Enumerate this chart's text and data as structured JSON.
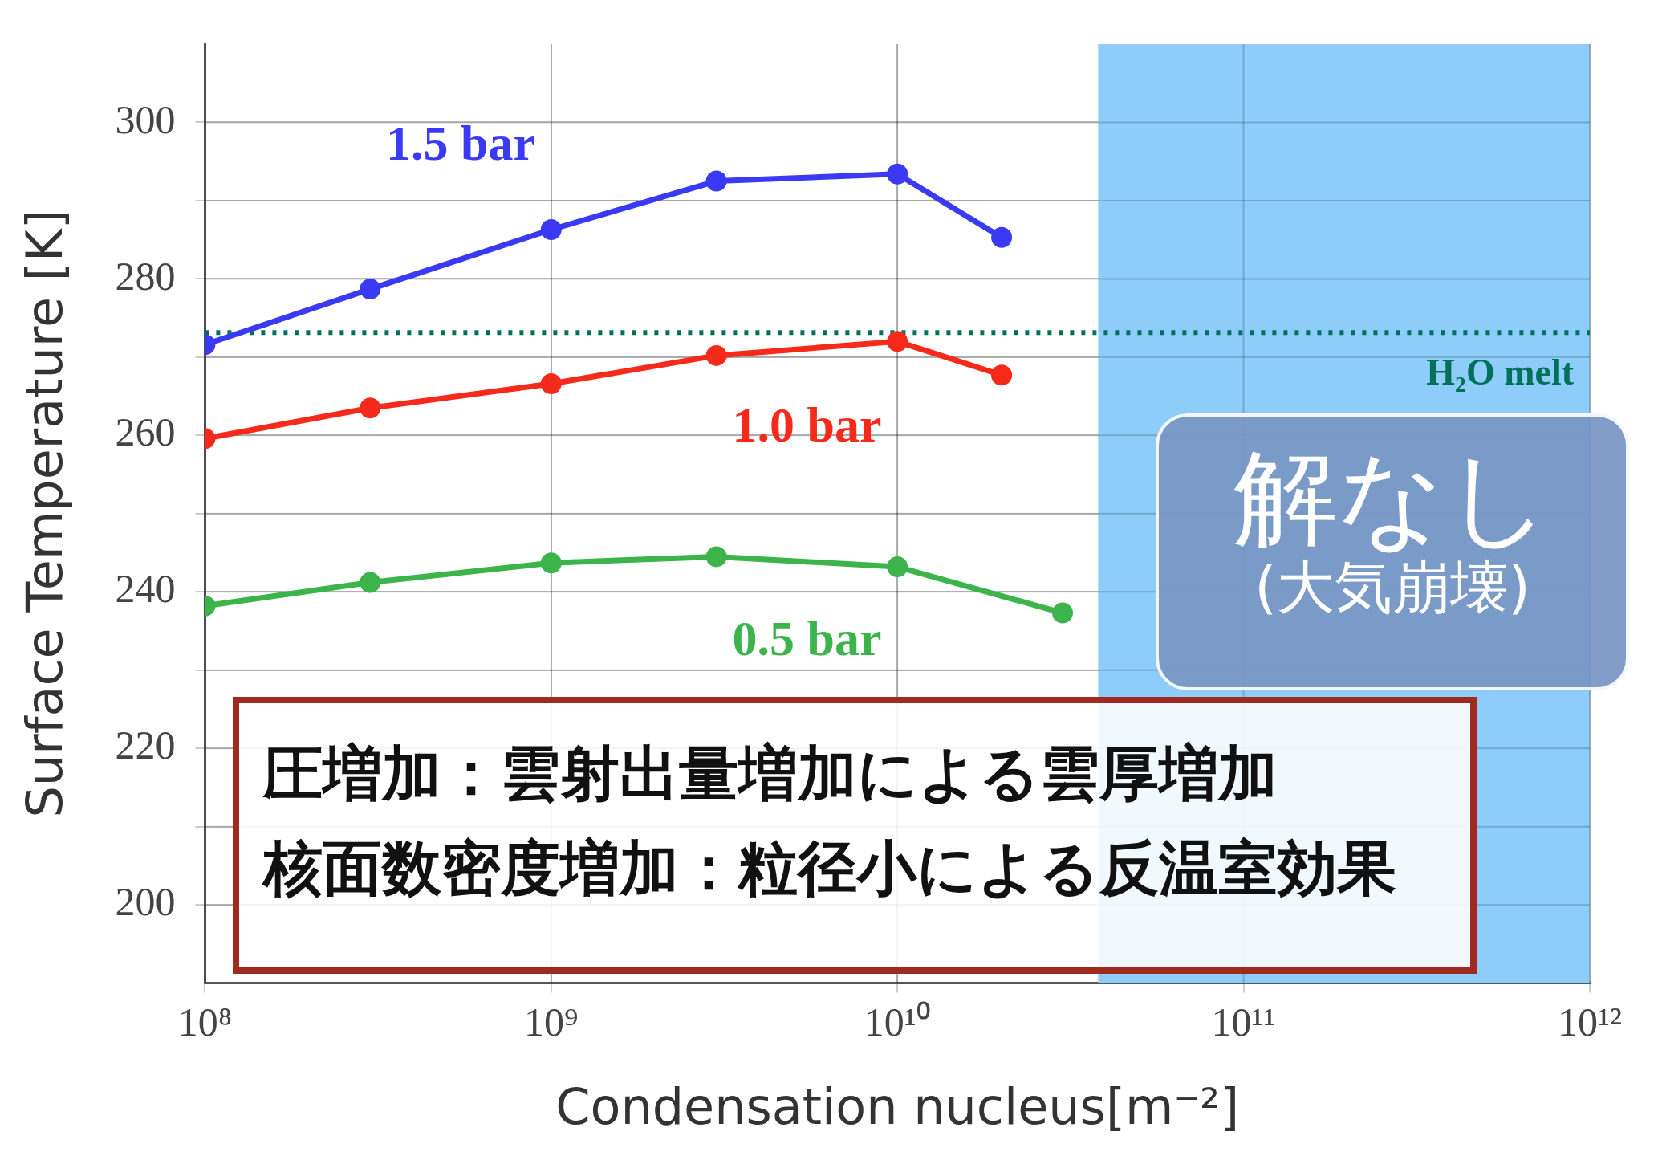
{
  "chart_data": {
    "type": "line",
    "xlabel": "Condensation nucleus[m⁻²]",
    "ylabel": "Surface Temperature [K]",
    "log": "x",
    "xlim": [
      100000000,
      1000000000000
    ],
    "xticks": [
      {
        "value": 100000000,
        "label": "10⁸"
      },
      {
        "value": 1000000000,
        "label": "10⁹"
      },
      {
        "value": 10000000000,
        "label": "10¹⁰"
      },
      {
        "value": 100000000000,
        "label": "10¹¹"
      },
      {
        "value": 1000000000000,
        "label": "10¹²"
      }
    ],
    "ylim": [
      190,
      310
    ],
    "yticks": [
      200,
      {
        "value": 210,
        "label": null
      },
      220,
      {
        "value": 230,
        "label": null
      },
      240,
      {
        "value": 250,
        "label": null
      },
      260,
      {
        "value": 270,
        "label": null
      },
      280,
      {
        "value": 290,
        "label": null
      },
      300
    ],
    "grid": true,
    "marker": "circle",
    "line_style": "solid",
    "legend": false,
    "series": [
      {
        "name": "1.5 bar",
        "color": "#3a3af5",
        "x": [
          100000000,
          300000000,
          1000000000,
          3000000000,
          10000000000,
          20000000000
        ],
        "values": [
          271.6,
          278.7,
          286.3,
          292.5,
          293.4,
          285.3
        ]
      },
      {
        "name": "1.0 bar",
        "color": "#f52a1a",
        "x": [
          100000000,
          300000000,
          1000000000,
          3000000000,
          10000000000,
          20000000000
        ],
        "values": [
          259.6,
          263.5,
          266.6,
          270.2,
          272.0,
          267.7
        ]
      },
      {
        "name": "0.5 bar",
        "color": "#3cb44b",
        "x": [
          100000000,
          300000000,
          1000000000,
          3000000000,
          10000000000,
          30000000000
        ],
        "values": [
          238.2,
          241.2,
          243.7,
          244.5,
          243.2,
          237.3
        ]
      }
    ],
    "ref_lines": [
      {
        "axis": "y",
        "value": 273.15,
        "label": "H₂O melt",
        "color": "#00705a",
        "line_style": "dotted"
      }
    ],
    "bands": [
      {
        "axis": "x",
        "from": 38000000000,
        "to": 1000000000000,
        "color": "#8ecdfa"
      }
    ],
    "annotations": [
      "解なし",
      "(大気崩壊)",
      "圧増加：雲射出量増加による雲厚増加",
      "核面数密度増加：粒径小による反温室効果"
    ]
  }
}
